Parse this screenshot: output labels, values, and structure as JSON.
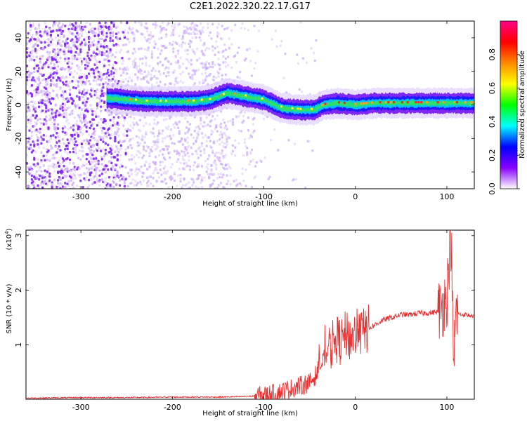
{
  "title": "C2E1.2022.320.22.17.G17",
  "chart_data": [
    {
      "type": "heatmap",
      "xlabel": "Height of straight line (km)",
      "ylabel": "Frequency (Hz)",
      "xlim": [
        -360,
        130
      ],
      "ylim": [
        -50,
        50
      ],
      "x_ticks": [
        "-300",
        "-200",
        "-100",
        "0",
        "100"
      ],
      "y_ticks": [
        "40",
        "20",
        "0",
        "-20",
        "-40"
      ],
      "x_tick_values": [
        -300,
        -200,
        -100,
        0,
        100
      ],
      "y_tick_values": [
        40,
        20,
        0,
        -20,
        -40
      ],
      "colorbar": {
        "label": "Normalized spectral amplitude",
        "range": [
          0,
          1
        ],
        "ticks": [
          "0.0",
          "0.2",
          "0.4",
          "0.6",
          "0.8"
        ],
        "tick_values": [
          0.0,
          0.2,
          0.4,
          0.6,
          0.8
        ],
        "colors": [
          "#ffffff",
          "#8800ff",
          "#0000ff",
          "#00ffff",
          "#00ff00",
          "#ffff00",
          "#ff8800",
          "#ff0000",
          "#ff0088"
        ]
      },
      "ridge": {
        "name": "Doppler ridge",
        "x": [
          -270,
          -250,
          -230,
          -200,
          -180,
          -160,
          -140,
          -120,
          -100,
          -80,
          -60,
          -45,
          -35,
          -20,
          0,
          20,
          50,
          80,
          100,
          130
        ],
        "y": [
          4,
          3,
          2,
          2,
          2,
          3,
          7,
          5,
          3,
          -2,
          -3,
          -3,
          0,
          1,
          0,
          1,
          1,
          1,
          1,
          1
        ]
      },
      "grid": false
    },
    {
      "type": "line",
      "xlabel": "Height of straight line (km)",
      "ylabel": "SNR (10 * v/v)",
      "y_multiplier": "(x10^4)",
      "xlim": [
        -360,
        130
      ],
      "ylim": [
        0,
        3.1
      ],
      "x_ticks": [
        "-300",
        "-200",
        "-100",
        "0",
        "100"
      ],
      "y_ticks": [
        "1",
        "2",
        "3"
      ],
      "x_tick_values": [
        -300,
        -200,
        -100,
        0,
        100
      ],
      "y_tick_values": [
        1,
        2,
        3
      ],
      "color": "#e83030",
      "series": [
        {
          "x": [
            -360,
            -300,
            -250,
            -200,
            -150,
            -120,
            -100,
            -85,
            -70,
            -60,
            -50,
            -45,
            -40,
            -35,
            -30,
            -25,
            -20,
            -15,
            -10,
            -5,
            0,
            5,
            10,
            15,
            20,
            25,
            30,
            40,
            50,
            60,
            70,
            80,
            90,
            95,
            100,
            103,
            105,
            107,
            110,
            115,
            120,
            130
          ],
          "y": [
            0.02,
            0.03,
            0.03,
            0.04,
            0.04,
            0.05,
            0.07,
            0.12,
            0.2,
            0.25,
            0.3,
            0.4,
            0.55,
            0.7,
            0.9,
            1.0,
            1.1,
            1.05,
            1.2,
            1.1,
            1.2,
            1.2,
            1.25,
            1.3,
            1.35,
            1.4,
            1.45,
            1.5,
            1.55,
            1.55,
            1.58,
            1.58,
            1.6,
            1.7,
            1.9,
            2.7,
            3.0,
            0.5,
            1.6,
            1.55,
            1.55,
            1.52
          ]
        }
      ],
      "grid": false
    }
  ]
}
